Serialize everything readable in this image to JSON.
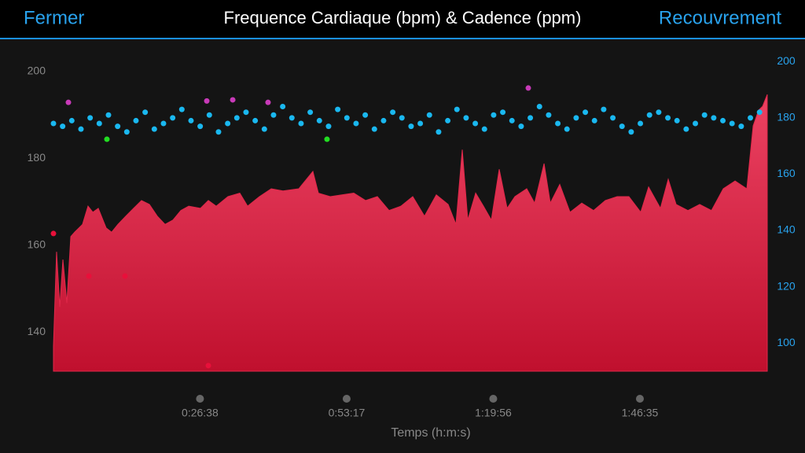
{
  "nav": {
    "left": "Fermer",
    "right": "Recouvrement"
  },
  "chart_data": {
    "type": "area-scatter",
    "title": "Frequence Cardiaque (bpm) & Cadence (ppm)",
    "x_label": "Temps (h:m:s)",
    "xlim": [
      0,
      7784
    ],
    "xticks": [
      {
        "value": 1598,
        "label": "0:26:38"
      },
      {
        "value": 3197,
        "label": "0:53:17"
      },
      {
        "value": 4796,
        "label": "1:19:56"
      },
      {
        "value": 6395,
        "label": "1:46:35"
      }
    ],
    "ylim": [
      131,
      206.5
    ],
    "yticks": [
      140,
      160,
      180,
      200
    ],
    "y2lim": [
      90,
      206.5
    ],
    "y2ticks": [
      100,
      120,
      140,
      160,
      180,
      200
    ],
    "series": [
      {
        "type": "area",
        "color": "#e0284a",
        "axis": "y",
        "x": [
          0,
          34,
          69,
          103,
          146,
          189,
          231,
          317,
          377,
          429,
          489,
          574,
          634,
          703,
          789,
          874,
          960,
          1046,
          1132,
          1217,
          1303,
          1389,
          1475,
          1603,
          1689,
          1775,
          1903,
          2032,
          2117,
          2246,
          2375,
          2503,
          2675,
          2829,
          2889,
          3018,
          3146,
          3275,
          3403,
          3532,
          3660,
          3789,
          3918,
          4046,
          4175,
          4304,
          4389,
          4458,
          4518,
          4604,
          4689,
          4775,
          4861,
          4947,
          5032,
          5161,
          5247,
          5350,
          5418,
          5521,
          5633,
          5761,
          5890,
          6018,
          6147,
          6275,
          6404,
          6490,
          6619,
          6704,
          6790,
          6919,
          7047,
          7176,
          7304,
          7433,
          7561,
          7630,
          7690,
          7733,
          7784
        ],
        "values": [
          136.8,
          158.5,
          145.8,
          156.7,
          146.7,
          162,
          163,
          164.8,
          169,
          167.6,
          168.5,
          164,
          163,
          164.8,
          166.7,
          168.5,
          170.3,
          169.4,
          166.7,
          164.8,
          165.8,
          168,
          169,
          168.5,
          170.3,
          169,
          171.2,
          172,
          169,
          171.2,
          173,
          172.5,
          173,
          177,
          172,
          171.2,
          171.6,
          172,
          170.3,
          171.2,
          168,
          169,
          171.2,
          166.7,
          171.6,
          169.4,
          164.8,
          182,
          165.8,
          172,
          169,
          165.8,
          177.5,
          168.5,
          171.2,
          173,
          169.7,
          178.8,
          169.7,
          174,
          167.6,
          169.7,
          168,
          170.3,
          171.2,
          171.2,
          167.6,
          173.4,
          168.5,
          175.2,
          169.4,
          168,
          169.4,
          168,
          173,
          174.8,
          173,
          187.5,
          191.1,
          192,
          194.7
        ]
      },
      {
        "type": "scatter",
        "color": "#1ab8f0",
        "axis": "y2",
        "x": [
          0,
          100,
          200,
          300,
          400,
          500,
          600,
          700,
          800,
          900,
          1000,
          1100,
          1200,
          1300,
          1400,
          1500,
          1600,
          1700,
          1800,
          1900,
          2000,
          2100,
          2200,
          2300,
          2400,
          2500,
          2600,
          2700,
          2800,
          2900,
          3000,
          3100,
          3200,
          3300,
          3400,
          3500,
          3600,
          3700,
          3800,
          3900,
          4000,
          4100,
          4200,
          4300,
          4400,
          4500,
          4600,
          4700,
          4800,
          4900,
          5000,
          5100,
          5200,
          5300,
          5400,
          5500,
          5600,
          5700,
          5800,
          5900,
          6000,
          6100,
          6200,
          6300,
          6400,
          6500,
          6600,
          6700,
          6800,
          6900,
          7000,
          7100,
          7200,
          7300,
          7400,
          7500,
          7600,
          7700
        ],
        "values": [
          178,
          177,
          179,
          176,
          180,
          178,
          181,
          177,
          175,
          179,
          182,
          176,
          178,
          180,
          183,
          179,
          177,
          181,
          175,
          178,
          180,
          182,
          179,
          176,
          181,
          184,
          180,
          178,
          182,
          179,
          177,
          183,
          180,
          178,
          181,
          176,
          179,
          182,
          180,
          177,
          178,
          181,
          175,
          179,
          183,
          180,
          178,
          176,
          181,
          182,
          179,
          177,
          180,
          184,
          181,
          178,
          176,
          180,
          182,
          179,
          183,
          180,
          177,
          175,
          178,
          181,
          182,
          180,
          179,
          176,
          178,
          181,
          180,
          179,
          178,
          177,
          180,
          182
        ]
      },
      {
        "type": "scatter",
        "color": "#c83ab8",
        "axis": "y2",
        "x": [
          163,
          1672,
          1955,
          2340,
          5178
        ],
        "values": [
          185.5,
          186,
          186.4,
          185.5,
          190.6
        ]
      },
      {
        "type": "scatter",
        "color": "#22dd22",
        "axis": "y2",
        "x": [
          583,
          2983
        ],
        "values": [
          172.4,
          172.4
        ]
      },
      {
        "type": "scatter",
        "color": "#e8103a",
        "axis": "y",
        "x": [
          0,
          386,
          780,
          1689
        ],
        "values": [
          162.7,
          152.9,
          152.9,
          132.3
        ]
      }
    ]
  }
}
